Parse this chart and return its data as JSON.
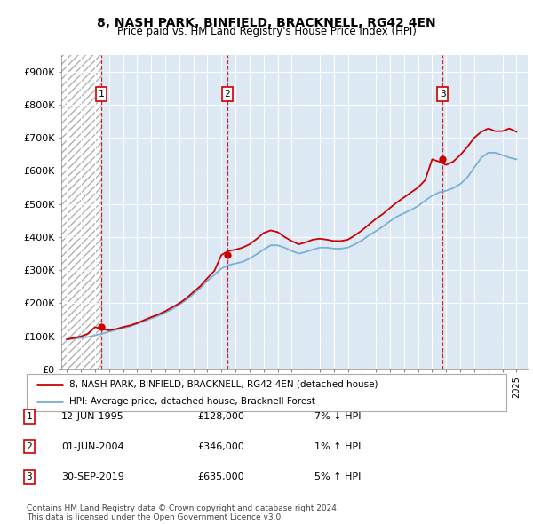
{
  "title1": "8, NASH PARK, BINFIELD, BRACKNELL, RG42 4EN",
  "title2": "Price paid vs. HM Land Registry's House Price Index (HPI)",
  "ylim": [
    0,
    950000
  ],
  "yticks": [
    0,
    100000,
    200000,
    300000,
    400000,
    500000,
    600000,
    700000,
    800000,
    900000
  ],
  "ytick_labels": [
    "£0",
    "£100K",
    "£200K",
    "£300K",
    "£400K",
    "£500K",
    "£600K",
    "£700K",
    "£800K",
    "£900K"
  ],
  "xlim_start": 1992.6,
  "xlim_end": 2025.8,
  "hpi_color": "#7bafd4",
  "price_color": "#cc0000",
  "bg_color": "#dce9f5",
  "sale_dates": [
    1995.45,
    2004.42,
    2019.75
  ],
  "sale_prices": [
    128000,
    346000,
    635000
  ],
  "sale_labels": [
    "1",
    "2",
    "3"
  ],
  "sale_info": [
    [
      "1",
      "12-JUN-1995",
      "£128,000",
      "7% ↓ HPI"
    ],
    [
      "2",
      "01-JUN-2004",
      "£346,000",
      "1% ↑ HPI"
    ],
    [
      "3",
      "30-SEP-2019",
      "£635,000",
      "5% ↑ HPI"
    ]
  ],
  "legend_label1": "8, NASH PARK, BINFIELD, BRACKNELL, RG42 4EN (detached house)",
  "legend_label2": "HPI: Average price, detached house, Bracknell Forest",
  "footnote": "Contains HM Land Registry data © Crown copyright and database right 2024.\nThis data is licensed under the Open Government Licence v3.0.",
  "hpi_years": [
    1993,
    1993.5,
    1994,
    1994.5,
    1995,
    1995.5,
    1996,
    1996.5,
    1997,
    1997.5,
    1998,
    1998.5,
    1999,
    1999.5,
    2000,
    2000.5,
    2001,
    2001.5,
    2002,
    2002.5,
    2003,
    2003.5,
    2004,
    2004.5,
    2005,
    2005.5,
    2006,
    2006.5,
    2007,
    2007.5,
    2008,
    2008.5,
    2009,
    2009.5,
    2010,
    2010.5,
    2011,
    2011.5,
    2012,
    2012.5,
    2013,
    2013.5,
    2014,
    2014.5,
    2015,
    2015.5,
    2016,
    2016.5,
    2017,
    2017.5,
    2018,
    2018.5,
    2019,
    2019.5,
    2020,
    2020.5,
    2021,
    2021.5,
    2022,
    2022.5,
    2023,
    2023.5,
    2024,
    2024.5,
    2025
  ],
  "hpi_values": [
    91000,
    93000,
    95000,
    98000,
    103000,
    108000,
    114000,
    120000,
    125000,
    130000,
    138000,
    146000,
    154000,
    162000,
    172000,
    182000,
    196000,
    210000,
    228000,
    246000,
    268000,
    286000,
    305000,
    315000,
    320000,
    325000,
    335000,
    348000,
    362000,
    375000,
    375000,
    368000,
    358000,
    350000,
    355000,
    362000,
    368000,
    368000,
    365000,
    365000,
    368000,
    378000,
    390000,
    405000,
    418000,
    432000,
    448000,
    462000,
    472000,
    482000,
    494000,
    510000,
    525000,
    535000,
    540000,
    548000,
    560000,
    580000,
    610000,
    640000,
    655000,
    655000,
    648000,
    640000,
    635000
  ],
  "price_years": [
    1993,
    1993.5,
    1994,
    1994.5,
    1995,
    1995.5,
    1996,
    1996.5,
    1997,
    1997.5,
    1998,
    1998.5,
    1999,
    1999.5,
    2000,
    2000.5,
    2001,
    2001.5,
    2002,
    2002.5,
    2003,
    2003.5,
    2004,
    2004.5,
    2005,
    2005.5,
    2006,
    2006.5,
    2007,
    2007.5,
    2008,
    2008.5,
    2009,
    2009.5,
    2010,
    2010.5,
    2011,
    2011.5,
    2012,
    2012.5,
    2013,
    2013.5,
    2014,
    2014.5,
    2015,
    2015.5,
    2016,
    2016.5,
    2017,
    2017.5,
    2018,
    2018.5,
    2019,
    2019.5,
    2020,
    2020.5,
    2021,
    2021.5,
    2022,
    2022.5,
    2023,
    2023.5,
    2024,
    2024.5,
    2025
  ],
  "price_values": [
    91000,
    95000,
    100000,
    108000,
    128000,
    122000,
    118000,
    122000,
    128000,
    133000,
    140000,
    149000,
    158000,
    166000,
    176000,
    188000,
    200000,
    215000,
    234000,
    252000,
    276000,
    298000,
    346000,
    358000,
    362000,
    368000,
    378000,
    394000,
    412000,
    420000,
    415000,
    400000,
    388000,
    378000,
    384000,
    392000,
    395000,
    392000,
    388000,
    388000,
    392000,
    405000,
    420000,
    438000,
    455000,
    470000,
    488000,
    505000,
    520000,
    535000,
    550000,
    572000,
    635000,
    628000,
    618000,
    628000,
    648000,
    672000,
    700000,
    718000,
    728000,
    720000,
    720000,
    728000,
    718000
  ]
}
